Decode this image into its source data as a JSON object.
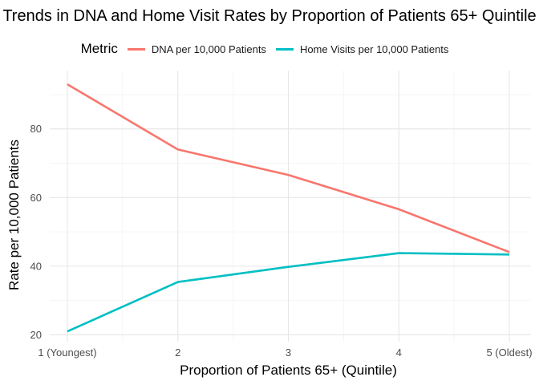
{
  "chart_data": {
    "type": "line",
    "title": "Trends in DNA and Home Visit Rates by Proportion of Patients 65+ Quintile",
    "xlabel": "Proportion of Patients 65+ (Quintile)",
    "ylabel": "Rate per 10,000 Patients",
    "categories": [
      "1 (Youngest)",
      "2",
      "3",
      "4",
      "5 (Oldest)"
    ],
    "y_ticks": [
      20,
      40,
      60,
      80
    ],
    "ylim": [
      18,
      97
    ],
    "grid": true,
    "legend_position": "top",
    "legend_title": "Metric",
    "series": [
      {
        "name": "DNA per 10,000 Patients",
        "color": "#F8766D",
        "values": [
          93.0,
          74.0,
          66.6,
          56.6,
          44.1
        ]
      },
      {
        "name": "Home Visits per 10,000 Patients",
        "color": "#00BFC4",
        "values": [
          21.0,
          35.4,
          39.8,
          43.8,
          43.4
        ]
      }
    ]
  }
}
